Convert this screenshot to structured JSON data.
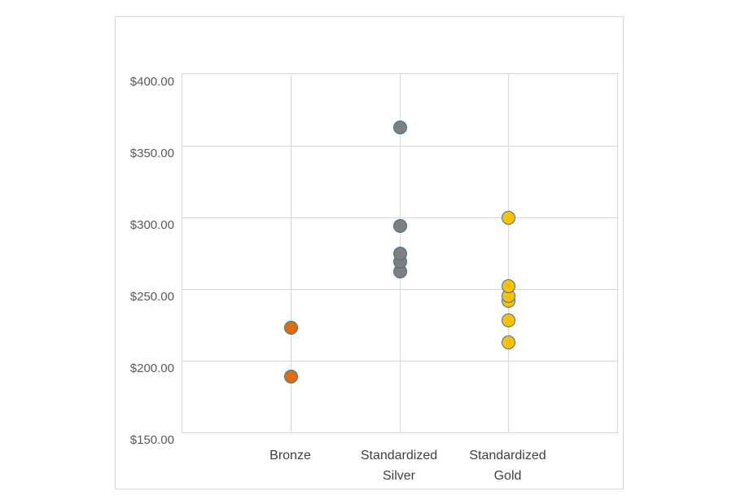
{
  "chart_data": {
    "type": "scatter",
    "title": "",
    "xlabel": "",
    "ylabel": "",
    "ylim": [
      150,
      400
    ],
    "grid": true,
    "legend": "none",
    "y_ticks": [
      {
        "value": 400,
        "label": "$400.00"
      },
      {
        "value": 350,
        "label": "$350.00"
      },
      {
        "value": 300,
        "label": "$300.00"
      },
      {
        "value": 250,
        "label": "$250.00"
      },
      {
        "value": 200,
        "label": "$200.00"
      },
      {
        "value": 150,
        "label": "$150.00"
      }
    ],
    "categories": [
      "Bronze",
      "Standardized Silver",
      "Standardized Gold"
    ],
    "series": [
      {
        "name": "Bronze",
        "category_index": 0,
        "fill_color": "#e36c09",
        "outline_color": "#31789f",
        "values": [
          189,
          223
        ]
      },
      {
        "name": "Standardized Silver",
        "category_index": 1,
        "fill_color": "#7f7f7f",
        "outline_color": "#31789f",
        "values": [
          262,
          269,
          275,
          294,
          363
        ]
      },
      {
        "name": "Standardized Gold",
        "category_index": 2,
        "fill_color": "#ffc000",
        "outline_color": "#31789f",
        "values": [
          213,
          228,
          242,
          245,
          252,
          300
        ]
      }
    ],
    "value_format": "currency_usd",
    "colors": {
      "gridline": "#d9d9d9",
      "plot_border": "#d9d9d9",
      "container_border": "#d9d9d9",
      "y_tick_text": "#595959",
      "category_text": "#3f3f3f"
    }
  }
}
